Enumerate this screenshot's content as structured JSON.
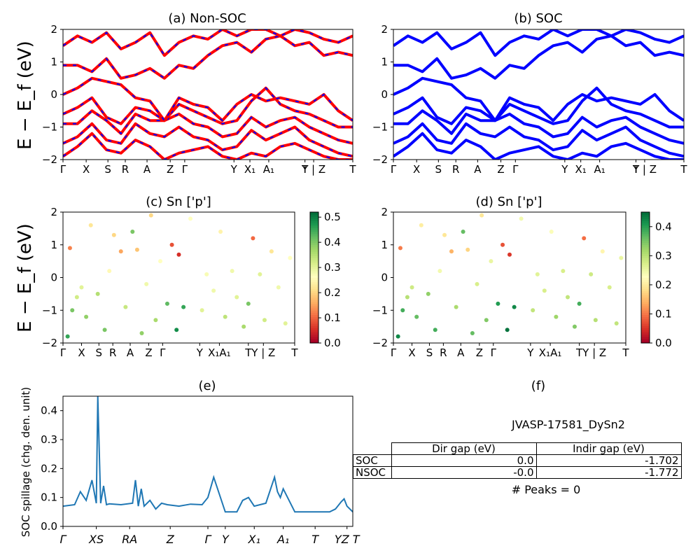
{
  "figure": {
    "ylabel_bands": "E − E_f (eV)",
    "kpath_labels": [
      "Γ",
      "X",
      "S",
      "R",
      "A",
      "Z",
      "Γ",
      "Y",
      "X₁",
      "A₁",
      "T",
      "Y | Z",
      "T"
    ]
  },
  "chart_data": [
    {
      "type": "line",
      "panel": "a",
      "title": "(a) Non-SOC",
      "ylim": [
        -2,
        2
      ],
      "yticks": [
        "−2",
        "−1",
        "0",
        "1",
        "2"
      ],
      "xticks": [
        "Γ",
        "X",
        "S",
        "R",
        "A",
        "Z",
        "Γ",
        "Y",
        "X₁",
        "A₁",
        "T",
        "Y | Z",
        "T"
      ],
      "series": [
        {
          "style": "red with blue dashes",
          "color": "#ff0000",
          "dash_color": "#0000ff",
          "x": [
            0,
            0.05,
            0.1,
            0.15,
            0.2,
            0.25,
            0.3,
            0.35,
            0.4,
            0.45,
            0.5,
            0.55,
            0.6,
            0.65,
            0.7,
            0.75,
            0.8,
            0.85,
            0.9,
            0.95,
            1.0
          ],
          "bands": [
            [
              -1.9,
              -1.6,
              -1.2,
              -1.7,
              -1.8,
              -1.4,
              -1.6,
              -2.0,
              -1.8,
              -1.7,
              -1.6,
              -1.9,
              -2.0,
              -1.8,
              -1.9,
              -1.6,
              -1.5,
              -1.7,
              -1.9,
              -2.0,
              -2.0
            ],
            [
              -1.5,
              -1.3,
              -0.9,
              -1.4,
              -1.5,
              -0.9,
              -1.2,
              -1.3,
              -1.0,
              -1.3,
              -1.4,
              -1.7,
              -1.6,
              -1.1,
              -1.4,
              -1.2,
              -1.0,
              -1.4,
              -1.6,
              -1.8,
              -1.9
            ],
            [
              -0.9,
              -0.9,
              -0.5,
              -0.8,
              -1.2,
              -0.6,
              -0.8,
              -0.8,
              -0.6,
              -0.9,
              -1.0,
              -1.3,
              -1.2,
              -0.7,
              -1.0,
              -0.8,
              -0.7,
              -1.0,
              -1.2,
              -1.4,
              -1.5
            ],
            [
              -0.6,
              -0.4,
              -0.1,
              -0.7,
              -0.9,
              -0.4,
              -0.5,
              -0.8,
              -0.3,
              -0.5,
              -0.7,
              -0.9,
              -0.8,
              -0.2,
              0.2,
              -0.3,
              -0.5,
              -0.6,
              -0.8,
              -1.0,
              -1.0
            ],
            [
              0.0,
              0.2,
              0.5,
              0.4,
              0.3,
              -0.1,
              -0.2,
              -0.8,
              -0.1,
              -0.3,
              -0.4,
              -0.8,
              -0.3,
              0.0,
              -0.2,
              -0.1,
              -0.2,
              -0.3,
              0.0,
              -0.5,
              -0.8
            ],
            [
              0.9,
              0.9,
              0.7,
              1.1,
              0.5,
              0.6,
              0.8,
              0.5,
              0.9,
              0.8,
              1.2,
              1.5,
              1.6,
              1.3,
              1.7,
              1.8,
              1.5,
              1.6,
              1.2,
              1.3,
              1.2
            ],
            [
              1.5,
              1.8,
              1.6,
              1.9,
              1.4,
              1.6,
              1.9,
              1.2,
              1.6,
              1.8,
              1.7,
              2.0,
              1.8,
              2.0,
              2.0,
              1.8,
              2.0,
              1.9,
              1.7,
              1.6,
              1.8
            ]
          ]
        }
      ]
    },
    {
      "type": "line",
      "panel": "b",
      "title": "(b) SOC",
      "ylim": [
        -2,
        2
      ],
      "yticks": [
        "−2",
        "−1",
        "0",
        "1",
        "2"
      ],
      "xticks": [
        "Γ",
        "X",
        "S",
        "R",
        "A",
        "Z",
        "Γ",
        "Y",
        "X₁",
        "A₁",
        "T",
        "Y | Z",
        "T"
      ],
      "series": [
        {
          "style": "solid blue",
          "color": "#0000ff",
          "x": [
            0,
            0.05,
            0.1,
            0.15,
            0.2,
            0.25,
            0.3,
            0.35,
            0.4,
            0.45,
            0.5,
            0.55,
            0.6,
            0.65,
            0.7,
            0.75,
            0.8,
            0.85,
            0.9,
            0.95,
            1.0
          ],
          "bands": [
            [
              -1.9,
              -1.6,
              -1.2,
              -1.7,
              -1.8,
              -1.4,
              -1.6,
              -2.0,
              -1.8,
              -1.7,
              -1.6,
              -1.9,
              -2.0,
              -1.8,
              -1.9,
              -1.6,
              -1.5,
              -1.7,
              -1.9,
              -2.0,
              -2.0
            ],
            [
              -1.5,
              -1.3,
              -0.9,
              -1.4,
              -1.5,
              -0.9,
              -1.2,
              -1.3,
              -1.0,
              -1.3,
              -1.4,
              -1.7,
              -1.6,
              -1.1,
              -1.4,
              -1.2,
              -1.0,
              -1.4,
              -1.6,
              -1.8,
              -1.9
            ],
            [
              -0.9,
              -0.9,
              -0.5,
              -0.8,
              -1.2,
              -0.6,
              -0.8,
              -0.8,
              -0.6,
              -0.9,
              -1.0,
              -1.3,
              -1.2,
              -0.7,
              -1.0,
              -0.8,
              -0.7,
              -1.0,
              -1.2,
              -1.4,
              -1.5
            ],
            [
              -0.6,
              -0.4,
              -0.1,
              -0.7,
              -0.9,
              -0.4,
              -0.5,
              -0.8,
              -0.3,
              -0.5,
              -0.7,
              -0.9,
              -0.8,
              -0.2,
              0.2,
              -0.3,
              -0.5,
              -0.6,
              -0.8,
              -1.0,
              -1.0
            ],
            [
              0.0,
              0.2,
              0.5,
              0.4,
              0.3,
              -0.1,
              -0.2,
              -0.8,
              -0.1,
              -0.3,
              -0.4,
              -0.8,
              -0.3,
              0.0,
              -0.2,
              -0.1,
              -0.2,
              -0.3,
              0.0,
              -0.5,
              -0.8
            ],
            [
              0.9,
              0.9,
              0.7,
              1.1,
              0.5,
              0.6,
              0.8,
              0.5,
              0.9,
              0.8,
              1.2,
              1.5,
              1.6,
              1.3,
              1.7,
              1.8,
              1.5,
              1.6,
              1.2,
              1.3,
              1.2
            ],
            [
              1.5,
              1.8,
              1.6,
              1.9,
              1.4,
              1.6,
              1.9,
              1.2,
              1.6,
              1.8,
              1.7,
              2.0,
              1.8,
              2.0,
              2.0,
              1.8,
              2.0,
              1.9,
              1.7,
              1.6,
              1.8
            ]
          ]
        }
      ]
    },
    {
      "type": "scatter",
      "panel": "c",
      "title": "(c)  Sn ['p']",
      "ylim": [
        -2,
        2
      ],
      "yticks": [
        "−2",
        "−1",
        "0",
        "1",
        "2"
      ],
      "xticks": [
        "Γ",
        "X",
        "S",
        "R",
        "A",
        "Z",
        "Γ",
        "Y",
        "X₁A₁",
        "T",
        "Y | Z",
        "T"
      ],
      "colorbar": {
        "colormap": "RdYlGn",
        "range": [
          0.0,
          0.52
        ],
        "ticks": [
          "0.0",
          "0.1",
          "0.2",
          "0.3",
          "0.4",
          "0.5"
        ]
      },
      "points": [
        [
          0.02,
          -1.8,
          0.45
        ],
        [
          0.04,
          -1.0,
          0.4
        ],
        [
          0.06,
          -0.6,
          0.32
        ],
        [
          0.03,
          0.9,
          0.12
        ],
        [
          0.08,
          -0.3,
          0.3
        ],
        [
          0.1,
          -1.2,
          0.38
        ],
        [
          0.12,
          1.6,
          0.22
        ],
        [
          0.15,
          -0.5,
          0.35
        ],
        [
          0.18,
          -1.6,
          0.4
        ],
        [
          0.2,
          0.2,
          0.25
        ],
        [
          0.22,
          1.3,
          0.2
        ],
        [
          0.25,
          0.8,
          0.15
        ],
        [
          0.27,
          -0.9,
          0.33
        ],
        [
          0.3,
          1.4,
          0.4
        ],
        [
          0.32,
          0.85,
          0.18
        ],
        [
          0.34,
          -1.7,
          0.38
        ],
        [
          0.36,
          -0.2,
          0.28
        ],
        [
          0.38,
          1.9,
          0.2
        ],
        [
          0.4,
          -1.3,
          0.36
        ],
        [
          0.42,
          0.5,
          0.26
        ],
        [
          0.45,
          -0.8,
          0.42
        ],
        [
          0.47,
          1.0,
          0.08
        ],
        [
          0.49,
          -1.6,
          0.48
        ],
        [
          0.5,
          0.7,
          0.05
        ],
        [
          0.52,
          -0.9,
          0.45
        ],
        [
          0.55,
          1.8,
          0.26
        ],
        [
          0.6,
          -1.0,
          0.3
        ],
        [
          0.62,
          0.1,
          0.27
        ],
        [
          0.65,
          -0.4,
          0.28
        ],
        [
          0.68,
          1.4,
          0.24
        ],
        [
          0.7,
          -1.2,
          0.34
        ],
        [
          0.73,
          0.2,
          0.28
        ],
        [
          0.75,
          -0.6,
          0.3
        ],
        [
          0.78,
          -1.5,
          0.36
        ],
        [
          0.8,
          -0.8,
          0.4
        ],
        [
          0.82,
          1.2,
          0.1
        ],
        [
          0.85,
          0.1,
          0.3
        ],
        [
          0.87,
          -1.3,
          0.32
        ],
        [
          0.9,
          0.8,
          0.22
        ],
        [
          0.93,
          -0.3,
          0.28
        ],
        [
          0.96,
          -1.4,
          0.3
        ],
        [
          0.98,
          0.6,
          0.26
        ]
      ]
    },
    {
      "type": "scatter",
      "panel": "d",
      "title": "(d) Sn ['p']",
      "ylim": [
        -2,
        2
      ],
      "yticks": [
        "−2",
        "−1",
        "0",
        "1",
        "2"
      ],
      "xticks": [
        "Γ",
        "X",
        "S",
        "R",
        "A",
        "Z",
        "Γ",
        "Y",
        "X₁A₁",
        "T",
        "Y | Z",
        "T"
      ],
      "colorbar": {
        "colormap": "RdYlGn",
        "range": [
          0.0,
          0.45
        ],
        "ticks": [
          "0.0",
          "0.1",
          "0.2",
          "0.3",
          "0.4"
        ]
      },
      "points": [
        [
          0.02,
          -1.8,
          0.42
        ],
        [
          0.04,
          -1.0,
          0.38
        ],
        [
          0.06,
          -0.6,
          0.3
        ],
        [
          0.03,
          0.9,
          0.1
        ],
        [
          0.08,
          -0.3,
          0.28
        ],
        [
          0.1,
          -1.2,
          0.36
        ],
        [
          0.12,
          1.6,
          0.2
        ],
        [
          0.15,
          -0.5,
          0.33
        ],
        [
          0.18,
          -1.6,
          0.38
        ],
        [
          0.2,
          0.2,
          0.24
        ],
        [
          0.22,
          1.3,
          0.19
        ],
        [
          0.25,
          0.8,
          0.14
        ],
        [
          0.27,
          -0.9,
          0.31
        ],
        [
          0.3,
          1.4,
          0.36
        ],
        [
          0.32,
          0.85,
          0.17
        ],
        [
          0.34,
          -1.7,
          0.36
        ],
        [
          0.36,
          -0.2,
          0.27
        ],
        [
          0.38,
          1.9,
          0.19
        ],
        [
          0.4,
          -1.3,
          0.34
        ],
        [
          0.42,
          0.5,
          0.25
        ],
        [
          0.45,
          -0.8,
          0.4
        ],
        [
          0.47,
          1.0,
          0.07
        ],
        [
          0.49,
          -1.6,
          0.44
        ],
        [
          0.5,
          0.7,
          0.05
        ],
        [
          0.52,
          -0.9,
          0.42
        ],
        [
          0.55,
          1.8,
          0.24
        ],
        [
          0.6,
          -1.0,
          0.29
        ],
        [
          0.62,
          0.1,
          0.26
        ],
        [
          0.65,
          -0.4,
          0.27
        ],
        [
          0.68,
          1.4,
          0.23
        ],
        [
          0.7,
          -1.2,
          0.32
        ],
        [
          0.73,
          0.2,
          0.27
        ],
        [
          0.75,
          -0.6,
          0.29
        ],
        [
          0.78,
          -1.5,
          0.34
        ],
        [
          0.8,
          -0.8,
          0.38
        ],
        [
          0.82,
          1.2,
          0.09
        ],
        [
          0.85,
          0.1,
          0.28
        ],
        [
          0.87,
          -1.3,
          0.3
        ],
        [
          0.9,
          0.8,
          0.21
        ],
        [
          0.93,
          -0.3,
          0.27
        ],
        [
          0.96,
          -1.4,
          0.29
        ],
        [
          0.98,
          0.6,
          0.25
        ]
      ]
    },
    {
      "type": "line",
      "panel": "e",
      "title": "(e)",
      "ylabel": "SOC spillage (chg. den. unit)",
      "ylim": [
        0.0,
        0.45
      ],
      "yticks": [
        "0.0",
        "0.1",
        "0.2",
        "0.3",
        "0.4"
      ],
      "xticks": [
        "Γ",
        "XS",
        "RA",
        "Z",
        "Γ",
        "Y",
        "X₁",
        "A₁",
        "T",
        "YZ T"
      ],
      "xtick_positions": [
        0,
        0.115,
        0.23,
        0.37,
        0.5,
        0.56,
        0.66,
        0.76,
        0.87,
        0.98
      ],
      "series": [
        {
          "color": "#1f77b4",
          "x": [
            0,
            0.04,
            0.06,
            0.08,
            0.1,
            0.115,
            0.12,
            0.13,
            0.14,
            0.15,
            0.16,
            0.2,
            0.24,
            0.25,
            0.26,
            0.27,
            0.28,
            0.3,
            0.32,
            0.34,
            0.36,
            0.4,
            0.44,
            0.48,
            0.5,
            0.52,
            0.56,
            0.6,
            0.62,
            0.64,
            0.66,
            0.7,
            0.73,
            0.74,
            0.75,
            0.76,
            0.8,
            0.84,
            0.88,
            0.92,
            0.94,
            0.96,
            0.97,
            0.98,
            1.0
          ],
          "y": [
            0.07,
            0.075,
            0.12,
            0.09,
            0.16,
            0.08,
            0.45,
            0.08,
            0.14,
            0.075,
            0.078,
            0.075,
            0.08,
            0.16,
            0.07,
            0.13,
            0.07,
            0.09,
            0.06,
            0.08,
            0.075,
            0.07,
            0.077,
            0.075,
            0.1,
            0.17,
            0.05,
            0.05,
            0.09,
            0.1,
            0.07,
            0.08,
            0.17,
            0.12,
            0.1,
            0.13,
            0.05,
            0.05,
            0.05,
            0.05,
            0.06,
            0.085,
            0.095,
            0.07,
            0.05
          ]
        }
      ]
    }
  ],
  "panel_f": {
    "title": "(f)",
    "material": "JVASP-17581_DySn2",
    "table_headers": [
      "",
      "Dir gap (eV)",
      "Indir gap (eV)"
    ],
    "rows": [
      {
        "label": "SOC",
        "dir_gap": "0.0",
        "indir_gap": "-1.702"
      },
      {
        "label": "NSOC",
        "dir_gap": "-0.0",
        "indir_gap": "-1.772"
      }
    ],
    "peaks": "# Peaks = 0"
  }
}
